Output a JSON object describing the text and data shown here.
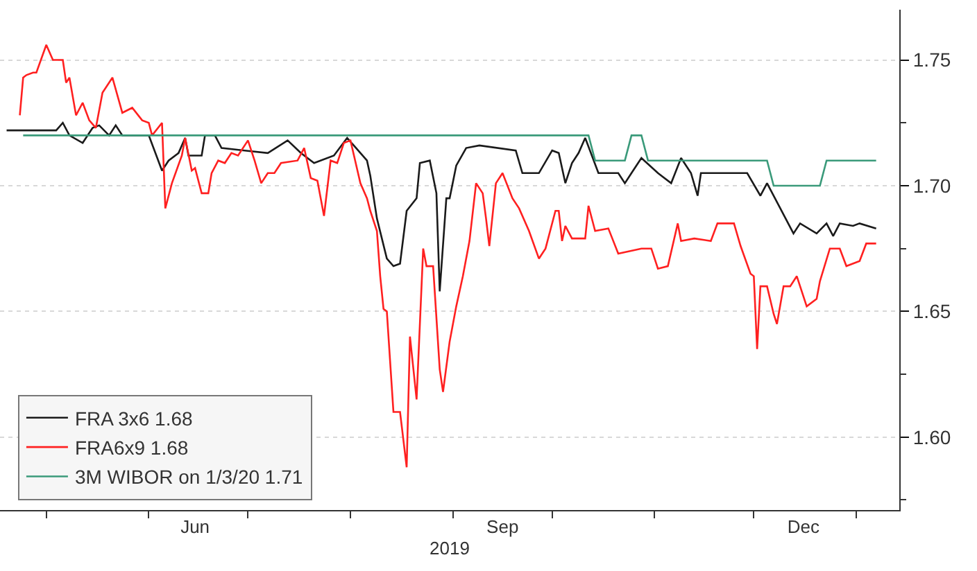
{
  "chart_data": {
    "type": "line",
    "xlabel": "2019",
    "x": [
      "2019-04-19",
      "2019-04-23",
      "2019-05-04",
      "2019-05-06",
      "2019-05-08",
      "2019-05-12",
      "2019-05-15",
      "2019-05-17",
      "2019-05-20",
      "2019-05-22",
      "2019-05-24",
      "2019-05-29",
      "2019-06-01",
      "2019-06-05",
      "2019-06-07",
      "2019-06-10",
      "2019-06-12",
      "2019-06-13",
      "2019-06-17",
      "2019-06-18",
      "2019-06-21",
      "2019-06-23",
      "2019-06-30",
      "2019-07-07",
      "2019-07-13",
      "2019-07-17",
      "2019-07-21",
      "2019-07-27",
      "2019-07-31",
      "2019-08-06",
      "2019-08-07",
      "2019-08-09",
      "2019-08-12",
      "2019-08-14",
      "2019-08-16",
      "2019-08-18",
      "2019-08-21",
      "2019-08-22",
      "2019-08-25",
      "2019-08-27",
      "2019-08-28",
      "2019-08-30",
      "2019-08-31",
      "2019-09-02",
      "2019-09-05",
      "2019-09-09",
      "2019-09-20",
      "2019-09-22",
      "2019-09-27",
      "2019-10-01",
      "2019-10-03",
      "2019-10-05",
      "2019-10-07",
      "2019-10-09",
      "2019-10-11",
      "2019-10-15",
      "2019-10-21",
      "2019-10-23",
      "2019-10-25",
      "2019-10-28",
      "2019-11-02",
      "2019-11-06",
      "2019-11-09",
      "2019-11-12",
      "2019-11-14",
      "2019-11-15",
      "2019-11-29",
      "2019-12-03",
      "2019-12-05",
      "2019-12-09",
      "2019-12-13",
      "2019-12-15",
      "2019-12-20",
      "2019-12-23",
      "2019-12-25",
      "2019-12-27",
      "2019-12-31",
      "2020-01-02",
      "2020-01-07"
    ],
    "series": [
      {
        "name": "FRA 3x6 1.68",
        "color": "#1a1a1a",
        "values": [
          1.722,
          1.722,
          1.722,
          1.725,
          1.72,
          1.717,
          1.723,
          1.724,
          1.72,
          1.724,
          1.72,
          1.72,
          1.72,
          1.706,
          1.71,
          1.713,
          1.719,
          1.712,
          1.712,
          1.72,
          1.72,
          1.715,
          1.714,
          1.713,
          1.718,
          1.713,
          1.709,
          1.712,
          1.719,
          1.71,
          1.704,
          1.687,
          1.671,
          1.668,
          1.669,
          1.69,
          1.695,
          1.709,
          1.71,
          1.697,
          1.658,
          1.695,
          1.695,
          1.708,
          1.715,
          1.716,
          1.714,
          1.705,
          1.705,
          1.714,
          1.713,
          1.701,
          1.709,
          1.713,
          1.719,
          1.705,
          1.705,
          1.701,
          1.705,
          1.711,
          1.705,
          1.701,
          1.711,
          1.705,
          1.696,
          1.705,
          1.705,
          1.696,
          1.701,
          1.691,
          1.681,
          1.685,
          1.681,
          1.685,
          1.68,
          1.685,
          1.684,
          1.685,
          1.683
        ]
      },
      {
        "name": "FRA6x9 1.68",
        "color": "#ff2020",
        "x": [
          "2019-04-23",
          "2019-04-24",
          "2019-04-25",
          "2019-04-27",
          "2019-04-28",
          "2019-05-01",
          "2019-05-03",
          "2019-05-06",
          "2019-05-07",
          "2019-05-08",
          "2019-05-10",
          "2019-05-12",
          "2019-05-14",
          "2019-05-16",
          "2019-05-18",
          "2019-05-21",
          "2019-05-24",
          "2019-05-27",
          "2019-05-30",
          "2019-06-01",
          "2019-06-02",
          "2019-06-05",
          "2019-06-06",
          "2019-06-08",
          "2019-06-11",
          "2019-06-12",
          "2019-06-14",
          "2019-06-15",
          "2019-06-17",
          "2019-06-19",
          "2019-06-20",
          "2019-06-22",
          "2019-06-24",
          "2019-06-26",
          "2019-06-28",
          "2019-07-01",
          "2019-07-03",
          "2019-07-05",
          "2019-07-07",
          "2019-07-09",
          "2019-07-11",
          "2019-07-16",
          "2019-07-18",
          "2019-07-20",
          "2019-07-22",
          "2019-07-24",
          "2019-07-26",
          "2019-07-28",
          "2019-07-30",
          "2019-08-01",
          "2019-08-04",
          "2019-08-06",
          "2019-08-07",
          "2019-08-09",
          "2019-08-10",
          "2019-08-11",
          "2019-08-12",
          "2019-08-14",
          "2019-08-16",
          "2019-08-18",
          "2019-08-19",
          "2019-08-21",
          "2019-08-23",
          "2019-08-24",
          "2019-08-26",
          "2019-08-28",
          "2019-08-29",
          "2019-08-31",
          "2019-09-02",
          "2019-09-04",
          "2019-09-06",
          "2019-09-08",
          "2019-09-10",
          "2019-09-11",
          "2019-09-12",
          "2019-09-14",
          "2019-09-16",
          "2019-09-19",
          "2019-09-21",
          "2019-09-24",
          "2019-09-27",
          "2019-09-29",
          "2019-10-02",
          "2019-10-03",
          "2019-10-04",
          "2019-10-05",
          "2019-10-07",
          "2019-10-11",
          "2019-10-12",
          "2019-10-14",
          "2019-10-18",
          "2019-10-21",
          "2019-10-28",
          "2019-10-31",
          "2019-11-02",
          "2019-11-05",
          "2019-11-08",
          "2019-11-09",
          "2019-11-13",
          "2019-11-18",
          "2019-11-20",
          "2019-11-25",
          "2019-11-27",
          "2019-11-30",
          "2019-12-01",
          "2019-12-02",
          "2019-12-03",
          "2019-12-05",
          "2019-12-07",
          "2019-12-08",
          "2019-12-10",
          "2019-12-12",
          "2019-12-14",
          "2019-12-17",
          "2019-12-20",
          "2019-12-21",
          "2019-12-24",
          "2019-12-27",
          "2019-12-29",
          "2020-01-02",
          "2020-01-04",
          "2020-01-07"
        ],
        "values": [
          1.728,
          1.743,
          1.744,
          1.745,
          1.745,
          1.756,
          1.75,
          1.75,
          1.741,
          1.743,
          1.728,
          1.733,
          1.726,
          1.723,
          1.737,
          1.743,
          1.729,
          1.731,
          1.726,
          1.725,
          1.72,
          1.725,
          1.691,
          1.701,
          1.712,
          1.719,
          1.706,
          1.707,
          1.697,
          1.697,
          1.705,
          1.71,
          1.709,
          1.713,
          1.712,
          1.718,
          1.71,
          1.701,
          1.705,
          1.705,
          1.709,
          1.71,
          1.715,
          1.703,
          1.702,
          1.688,
          1.71,
          1.709,
          1.717,
          1.718,
          1.701,
          1.695,
          1.69,
          1.682,
          1.664,
          1.651,
          1.65,
          1.61,
          1.61,
          1.588,
          1.64,
          1.615,
          1.675,
          1.668,
          1.668,
          1.627,
          1.618,
          1.638,
          1.652,
          1.664,
          1.678,
          1.701,
          1.697,
          1.687,
          1.676,
          1.701,
          1.705,
          1.695,
          1.691,
          1.682,
          1.671,
          1.675,
          1.69,
          1.69,
          1.678,
          1.684,
          1.679,
          1.679,
          1.692,
          1.682,
          1.683,
          1.673,
          1.675,
          1.675,
          1.667,
          1.668,
          1.685,
          1.678,
          1.679,
          1.678,
          1.685,
          1.685,
          1.676,
          1.665,
          1.664,
          1.635,
          1.66,
          1.66,
          1.649,
          1.645,
          1.66,
          1.66,
          1.664,
          1.652,
          1.655,
          1.662,
          1.675,
          1.675,
          1.668,
          1.67,
          1.677,
          1.677
        ]
      },
      {
        "name": "3M WIBOR on 1/3/20 1.71",
        "color": "#3a9a7a",
        "x": [
          "2019-04-24",
          "2019-10-12",
          "2019-10-14",
          "2019-10-23",
          "2019-10-25",
          "2019-10-28",
          "2019-10-30",
          "2019-12-05",
          "2019-12-07",
          "2019-12-21",
          "2019-12-23",
          "2020-01-07"
        ],
        "values": [
          1.72,
          1.72,
          1.71,
          1.71,
          1.72,
          1.72,
          1.71,
          1.71,
          1.7,
          1.7,
          1.71,
          1.71
        ]
      }
    ],
    "xlim": [
      "2019-04-17",
      "2020-01-14"
    ],
    "xticks": [
      {
        "value": "2019-05-01",
        "label": null
      },
      {
        "value": "2019-06-01",
        "label": null
      },
      {
        "value": "2019-06-15",
        "label": "Jun"
      },
      {
        "value": "2019-07-01",
        "label": null
      },
      {
        "value": "2019-08-01",
        "label": null
      },
      {
        "value": "2019-09-01",
        "label": null
      },
      {
        "value": "2019-09-16",
        "label": "Sep"
      },
      {
        "value": "2019-10-01",
        "label": null
      },
      {
        "value": "2019-11-01",
        "label": null
      },
      {
        "value": "2019-12-01",
        "label": null
      },
      {
        "value": "2019-12-16",
        "label": "Dec"
      },
      {
        "value": "2020-01-01",
        "label": null
      }
    ],
    "ylim": [
      1.571,
      1.77
    ],
    "yticks": [
      {
        "value": 1.575,
        "label": null
      },
      {
        "value": 1.6,
        "label": "1.60"
      },
      {
        "value": 1.625,
        "label": null
      },
      {
        "value": 1.65,
        "label": "1.65"
      },
      {
        "value": 1.675,
        "label": null
      },
      {
        "value": 1.7,
        "label": "1.70"
      },
      {
        "value": 1.725,
        "label": null
      },
      {
        "value": 1.75,
        "label": "1.75"
      }
    ],
    "grid": "y",
    "legend": "bottom left",
    "marker": "none",
    "line_style": "solid"
  }
}
